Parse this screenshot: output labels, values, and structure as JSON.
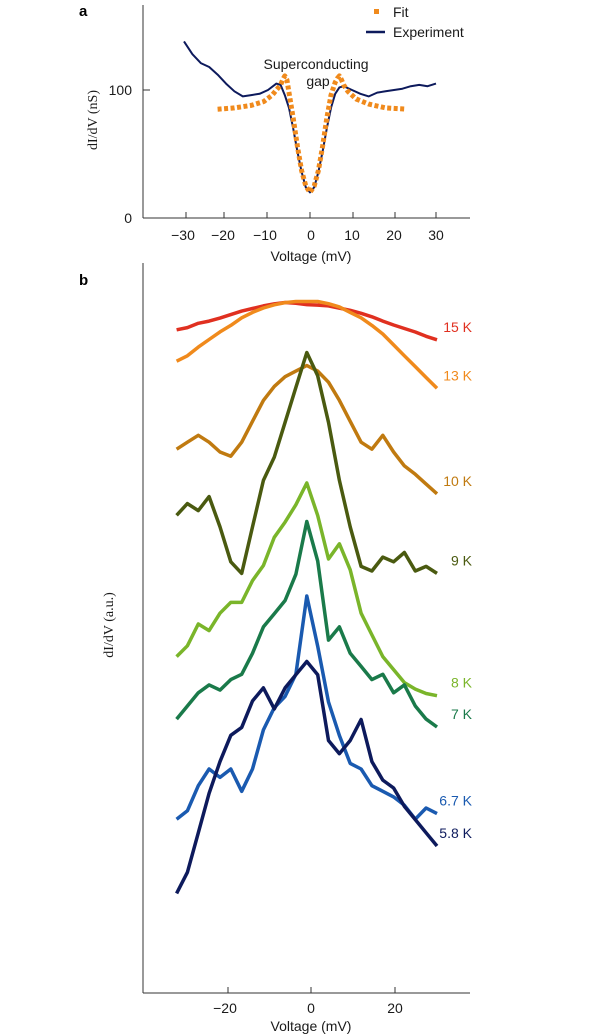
{
  "chart_data": [
    {
      "panel": "a",
      "type": "line",
      "xlabel": "Voltage (mV)",
      "ylabel": "dI/dV (nS)",
      "xlim": [
        -39,
        39
      ],
      "ylim": [
        0,
        160
      ],
      "xticks": [
        -30,
        -20,
        -10,
        0,
        10,
        20,
        30
      ],
      "yticks": [
        0,
        100
      ],
      "annotation": "Superconducting\ngap",
      "series": [
        {
          "name": "Experiment",
          "color": "#0d1a5c",
          "style": "solid",
          "points": [
            [
              -30,
              138
            ],
            [
              -28,
              128
            ],
            [
              -26,
              121
            ],
            [
              -24,
              118
            ],
            [
              -22,
              112
            ],
            [
              -20,
              105
            ],
            [
              -18,
              99
            ],
            [
              -16,
              95
            ],
            [
              -14,
              96
            ],
            [
              -12,
              97
            ],
            [
              -10,
              100
            ],
            [
              -8,
              105
            ],
            [
              -7,
              104
            ],
            [
              -6,
              96
            ],
            [
              -5,
              86
            ],
            [
              -4,
              70
            ],
            [
              -3,
              52
            ],
            [
              -2,
              36
            ],
            [
              -1,
              24
            ],
            [
              0,
              20
            ],
            [
              1,
              24
            ],
            [
              2,
              36
            ],
            [
              3,
              52
            ],
            [
              4,
              70
            ],
            [
              5,
              86
            ],
            [
              6,
              97
            ],
            [
              7,
              102
            ],
            [
              8,
              103
            ],
            [
              10,
              100
            ],
            [
              12,
              97
            ],
            [
              14,
              95
            ],
            [
              16,
              98
            ],
            [
              18,
              99
            ],
            [
              20,
              100
            ],
            [
              22,
              101
            ],
            [
              24,
              103
            ],
            [
              26,
              104
            ],
            [
              28,
              103
            ],
            [
              30,
              105
            ]
          ]
        },
        {
          "name": "Fit",
          "color": "#f08a1c",
          "style": "dotted",
          "points": [
            [
              -22,
              85
            ],
            [
              -18,
              86
            ],
            [
              -14,
              88
            ],
            [
              -11,
              91
            ],
            [
              -9,
              96
            ],
            [
              -8,
              100
            ],
            [
              -7,
              104
            ],
            [
              -6.5,
              108
            ],
            [
              -6,
              111
            ],
            [
              -5.5,
              108
            ],
            [
              -5,
              98
            ],
            [
              -4,
              78
            ],
            [
              -3,
              56
            ],
            [
              -2,
              37
            ],
            [
              -1,
              25
            ],
            [
              0,
              20
            ],
            [
              1,
              25
            ],
            [
              2,
              37
            ],
            [
              3,
              56
            ],
            [
              4,
              78
            ],
            [
              5,
              96
            ],
            [
              6,
              106
            ],
            [
              6.5,
              109
            ],
            [
              7,
              111
            ],
            [
              7.5,
              108
            ],
            [
              8,
              104
            ],
            [
              9,
              99
            ],
            [
              11,
              93
            ],
            [
              14,
              89
            ],
            [
              18,
              86
            ],
            [
              23,
              85
            ]
          ]
        }
      ]
    },
    {
      "panel": "b",
      "type": "line",
      "xlabel": "Voltage (mV)",
      "ylabel": "dI/dV (a.u.)",
      "xlim": [
        -39,
        39
      ],
      "xticks": [
        -20,
        0,
        20
      ],
      "series": [
        {
          "name": "15 K",
          "color": "#e03020",
          "offset": 690,
          "amp": 0.14,
          "values": [
            0.35,
            0.4,
            0.5,
            0.55,
            0.62,
            0.7,
            0.78,
            0.84,
            0.9,
            0.95,
            0.98,
            0.96,
            0.93,
            0.92,
            0.9,
            0.85,
            0.8,
            0.73,
            0.65,
            0.55,
            0.46,
            0.38,
            0.3,
            0.2,
            0.12
          ]
        },
        {
          "name": "13 K",
          "color": "#f08a1c",
          "offset": 625,
          "amp": 0.35,
          "values": [
            0.45,
            0.5,
            0.58,
            0.65,
            0.72,
            0.78,
            0.85,
            0.9,
            0.94,
            0.97,
            0.99,
            1.0,
            1.0,
            1.0,
            0.98,
            0.95,
            0.9,
            0.85,
            0.78,
            0.7,
            0.6,
            0.5,
            0.4,
            0.3,
            0.2
          ]
        },
        {
          "name": "10 K",
          "color": "#c07a10",
          "offset": 530,
          "amp": 0.45,
          "values": [
            0.4,
            0.45,
            0.5,
            0.45,
            0.38,
            0.35,
            0.45,
            0.6,
            0.75,
            0.85,
            0.92,
            0.96,
            1.0,
            0.96,
            0.88,
            0.75,
            0.6,
            0.45,
            0.4,
            0.5,
            0.38,
            0.28,
            0.22,
            0.15,
            0.08
          ]
        },
        {
          "name": "9 K",
          "color": "#4a5a10",
          "offset": 450,
          "amp": 0.75,
          "values": [
            0.3,
            0.35,
            0.32,
            0.38,
            0.25,
            0.1,
            0.05,
            0.25,
            0.45,
            0.55,
            0.7,
            0.85,
            1.0,
            0.9,
            0.7,
            0.45,
            0.25,
            0.08,
            0.06,
            0.12,
            0.1,
            0.14,
            0.06,
            0.08,
            0.05
          ]
        },
        {
          "name": "8 K",
          "color": "#7ab52a",
          "offset": 335,
          "amp": 0.7,
          "values": [
            0.2,
            0.25,
            0.35,
            0.32,
            0.4,
            0.45,
            0.45,
            0.55,
            0.62,
            0.75,
            0.82,
            0.9,
            1.0,
            0.85,
            0.65,
            0.72,
            0.6,
            0.4,
            0.3,
            0.2,
            0.14,
            0.08,
            0.05,
            0.03,
            0.02
          ]
        },
        {
          "name": "7 K",
          "color": "#1a7a4a",
          "offset": 250,
          "amp": 0.85,
          "values": [
            0.25,
            0.3,
            0.35,
            0.38,
            0.36,
            0.4,
            0.42,
            0.5,
            0.6,
            0.65,
            0.7,
            0.8,
            1.0,
            0.85,
            0.55,
            0.6,
            0.5,
            0.45,
            0.4,
            0.42,
            0.35,
            0.38,
            0.3,
            0.25,
            0.22
          ]
        },
        {
          "name": "6.7 K",
          "color": "#1a5ab0",
          "offset": 160,
          "amp": 0.9,
          "values": [
            0.2,
            0.23,
            0.32,
            0.38,
            0.35,
            0.38,
            0.3,
            0.38,
            0.52,
            0.6,
            0.64,
            0.72,
            1.0,
            0.82,
            0.62,
            0.5,
            0.4,
            0.38,
            0.32,
            0.3,
            0.28,
            0.25,
            0.2,
            0.24,
            0.22
          ]
        },
        {
          "name": "5.8 K",
          "color": "#0d1a5c",
          "offset": 110,
          "amp": 0.85,
          "values": [
            0.12,
            0.2,
            0.35,
            0.5,
            0.62,
            0.72,
            0.75,
            0.85,
            0.9,
            0.82,
            0.9,
            0.95,
            1.0,
            0.95,
            0.7,
            0.65,
            0.7,
            0.78,
            0.62,
            0.55,
            0.52,
            0.45,
            0.4,
            0.35,
            0.3
          ]
        }
      ]
    }
  ]
}
